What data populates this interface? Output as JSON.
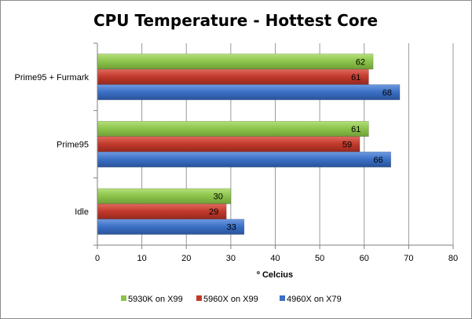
{
  "chart_data": {
    "type": "bar",
    "orientation": "horizontal",
    "title": "CPU Temperature - Hottest Core",
    "xlabel": "º Celcius",
    "ylabel": "",
    "xlim": [
      0,
      80
    ],
    "x_ticks": [
      0,
      10,
      20,
      30,
      40,
      50,
      60,
      70,
      80
    ],
    "grid": true,
    "legend_position": "bottom",
    "categories": [
      "Prime95 + Furmark",
      "Prime95",
      "Idle"
    ],
    "series": [
      {
        "name": "5930K on X99",
        "color": "#8bc34a",
        "values": [
          62,
          61,
          30
        ]
      },
      {
        "name": "5960X on X99",
        "color": "#c0392b",
        "values": [
          61,
          59,
          29
        ]
      },
      {
        "name": "4960X on X79",
        "color": "#3a6fc4",
        "values": [
          68,
          66,
          33
        ]
      }
    ]
  }
}
